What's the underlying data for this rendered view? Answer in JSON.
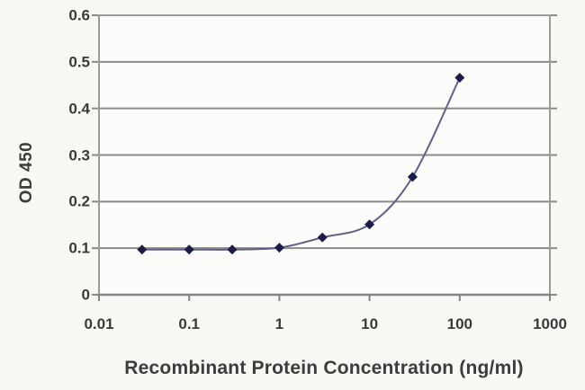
{
  "page": {
    "background": "#f8f8f5",
    "plot_background": "#fcfcfa"
  },
  "chart_data": {
    "type": "line",
    "title": "",
    "xlabel": "Recombinant Protein Concentration (ng/ml)",
    "ylabel": "OD 450",
    "x_scale": "log",
    "y_scale": "linear",
    "xlim": [
      0.01,
      1000
    ],
    "ylim": [
      0,
      0.6
    ],
    "x_ticks": [
      0.01,
      0.1,
      1,
      10,
      100,
      1000
    ],
    "x_tick_labels": [
      "0.01",
      "0.1",
      "1",
      "10",
      "100",
      "1000"
    ],
    "y_ticks": [
      0,
      0.1,
      0.2,
      0.3,
      0.4,
      0.5,
      0.6
    ],
    "y_tick_labels": [
      "0",
      "0.1",
      "0.2",
      "0.3",
      "0.4",
      "0.5",
      "0.6"
    ],
    "grid": "horizontal",
    "legend": "none",
    "marker_shape": "diamond",
    "x": [
      0.03,
      0.1,
      0.3,
      1,
      3,
      10,
      30,
      100
    ],
    "series": [
      {
        "name": "OD 450",
        "values": [
          0.097,
          0.097,
          0.097,
          0.101,
          0.123,
          0.151,
          0.253,
          0.466
        ]
      }
    ],
    "colors": {
      "line": "#5f5f8a",
      "marker": "#1c1c49",
      "grid": "#8a8a8a",
      "frame": "#9c9c9c",
      "axis": "#858585",
      "text": "#3a3a3a"
    }
  }
}
